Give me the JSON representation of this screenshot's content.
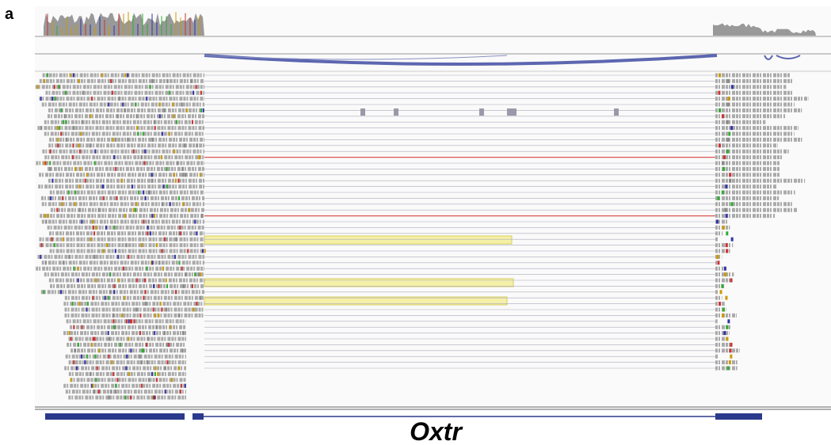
{
  "panel_label": "a",
  "gene": {
    "name": "Oxtr"
  }
}
